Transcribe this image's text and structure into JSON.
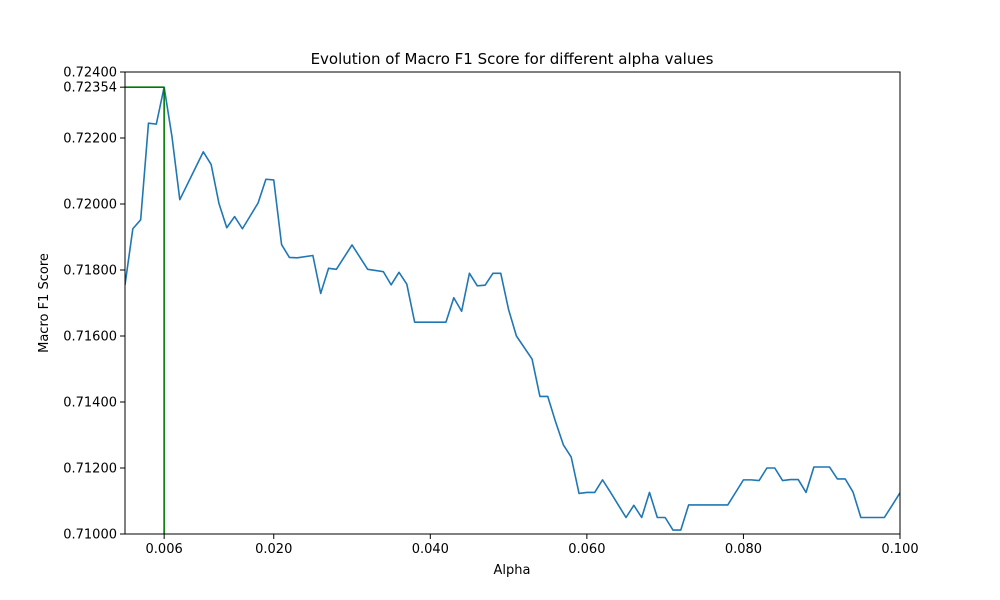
{
  "chart_data": {
    "type": "line",
    "title": "Evolution of Macro F1 Score for different alpha values",
    "xlabel": "Alpha",
    "ylabel": "Macro F1 Score",
    "xlim": [
      0.001,
      0.1
    ],
    "ylim": [
      0.71,
      0.724
    ],
    "grid": false,
    "x_ticks": [
      {
        "value": 0.006,
        "label": "0.006"
      },
      {
        "value": 0.02,
        "label": "0.020"
      },
      {
        "value": 0.04,
        "label": "0.040"
      },
      {
        "value": 0.06,
        "label": "0.060"
      },
      {
        "value": 0.08,
        "label": "0.080"
      },
      {
        "value": 0.1,
        "label": "0.100"
      }
    ],
    "y_ticks": [
      {
        "value": 0.71,
        "label": "0.71000"
      },
      {
        "value": 0.712,
        "label": "0.71200"
      },
      {
        "value": 0.714,
        "label": "0.71400"
      },
      {
        "value": 0.716,
        "label": "0.71600"
      },
      {
        "value": 0.718,
        "label": "0.71800"
      },
      {
        "value": 0.72,
        "label": "0.72000"
      },
      {
        "value": 0.722,
        "label": "0.72200"
      },
      {
        "value": 0.72354,
        "label": "0.72354"
      },
      {
        "value": 0.724,
        "label": "0.72400"
      }
    ],
    "highlight": {
      "x": 0.006,
      "y": 0.72354,
      "color": "#007a00"
    },
    "series_color": "#1f77b4",
    "x": [
      0.001,
      0.002,
      0.003,
      0.004,
      0.005,
      0.006,
      0.007,
      0.008,
      0.011,
      0.012,
      0.013,
      0.014,
      0.015,
      0.016,
      0.017,
      0.018,
      0.019,
      0.02,
      0.021,
      0.022,
      0.023,
      0.025,
      0.026,
      0.027,
      0.028,
      0.03,
      0.032,
      0.034,
      0.035,
      0.036,
      0.037,
      0.038,
      0.04,
      0.041,
      0.042,
      0.043,
      0.044,
      0.045,
      0.046,
      0.047,
      0.048,
      0.049,
      0.05,
      0.051,
      0.053,
      0.054,
      0.055,
      0.056,
      0.057,
      0.058,
      0.059,
      0.06,
      0.061,
      0.062,
      0.063,
      0.065,
      0.066,
      0.067,
      0.068,
      0.069,
      0.07,
      0.071,
      0.072,
      0.073,
      0.075,
      0.076,
      0.078,
      0.08,
      0.081,
      0.082,
      0.083,
      0.084,
      0.085,
      0.086,
      0.087,
      0.088,
      0.089,
      0.09,
      0.091,
      0.092,
      0.093,
      0.094,
      0.095,
      0.096,
      0.097,
      0.098,
      0.099,
      0.1
    ],
    "values": [
      0.71755,
      0.71925,
      0.71952,
      0.72245,
      0.72242,
      0.72354,
      0.72204,
      0.72013,
      0.72158,
      0.7212,
      0.72002,
      0.71928,
      0.71962,
      0.71925,
      0.71964,
      0.72003,
      0.72075,
      0.72073,
      0.71877,
      0.71838,
      0.71837,
      0.71844,
      0.71729,
      0.71805,
      0.71802,
      0.71876,
      0.71802,
      0.71795,
      0.71755,
      0.71793,
      0.71757,
      0.71642,
      0.71642,
      0.71642,
      0.71642,
      0.71716,
      0.71675,
      0.7179,
      0.71752,
      0.71754,
      0.7179,
      0.7179,
      0.7168,
      0.716,
      0.7153,
      0.71417,
      0.71417,
      0.7134,
      0.7127,
      0.71233,
      0.71123,
      0.71126,
      0.71126,
      0.71164,
      0.71127,
      0.7105,
      0.71087,
      0.7105,
      0.71126,
      0.7105,
      0.7105,
      0.71012,
      0.71012,
      0.71088,
      0.71088,
      0.71088,
      0.71088,
      0.71164,
      0.71164,
      0.71162,
      0.712,
      0.712,
      0.71162,
      0.71165,
      0.71165,
      0.71126,
      0.71203,
      0.71203,
      0.71203,
      0.71167,
      0.71167,
      0.71127,
      0.7105,
      0.7105,
      0.7105,
      0.7105,
      0.71087,
      0.71125
    ]
  }
}
